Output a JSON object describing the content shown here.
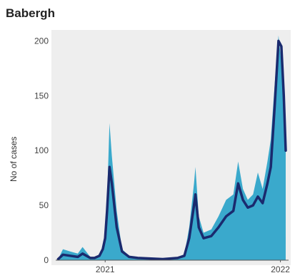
{
  "title": "Babergh",
  "chart_data": {
    "type": "area",
    "title": "Babergh",
    "xlabel": "",
    "ylabel": "No of cases",
    "ylim": [
      0,
      210
    ],
    "y_ticks": [
      0,
      50,
      100,
      150,
      200
    ],
    "x_ticks": [
      "2021",
      "2022"
    ],
    "grid": false,
    "series": [
      {
        "kind": "daily",
        "color": "#3aa9cc",
        "x": [
          "2020-09-25",
          "2020-10-05",
          "2020-10-20",
          "2020-11-05",
          "2020-11-15",
          "2020-12-01",
          "2020-12-10",
          "2020-12-20",
          "2020-12-27",
          "2021-01-01",
          "2021-01-05",
          "2021-01-10",
          "2021-01-15",
          "2021-01-25",
          "2021-02-05",
          "2021-02-20",
          "2021-03-10",
          "2021-05-01",
          "2021-06-01",
          "2021-06-15",
          "2021-06-25",
          "2021-07-05",
          "2021-07-08",
          "2021-07-15",
          "2021-07-25",
          "2021-08-10",
          "2021-08-25",
          "2021-09-10",
          "2021-09-25",
          "2021-10-05",
          "2021-10-15",
          "2021-10-25",
          "2021-11-05",
          "2021-11-15",
          "2021-11-25",
          "2021-12-05",
          "2021-12-12",
          "2021-12-20",
          "2021-12-28",
          "2022-01-03",
          "2022-01-08",
          "2022-01-12"
        ],
        "values": [
          1,
          10,
          8,
          6,
          12,
          3,
          2,
          4,
          12,
          26,
          55,
          125,
          95,
          45,
          10,
          4,
          2,
          1,
          2,
          5,
          30,
          70,
          85,
          40,
          25,
          28,
          40,
          55,
          60,
          90,
          65,
          55,
          60,
          80,
          65,
          90,
          110,
          160,
          205,
          180,
          140,
          110
        ]
      },
      {
        "kind": "rolling_average",
        "color": "#1a2a6e",
        "x": [
          "2020-09-25",
          "2020-10-05",
          "2020-10-20",
          "2020-11-05",
          "2020-11-15",
          "2020-12-01",
          "2020-12-10",
          "2020-12-20",
          "2020-12-27",
          "2021-01-01",
          "2021-01-05",
          "2021-01-10",
          "2021-01-15",
          "2021-01-25",
          "2021-02-05",
          "2021-02-20",
          "2021-03-10",
          "2021-05-01",
          "2021-06-01",
          "2021-06-15",
          "2021-06-25",
          "2021-07-05",
          "2021-07-08",
          "2021-07-15",
          "2021-07-25",
          "2021-08-10",
          "2021-08-25",
          "2021-09-10",
          "2021-09-25",
          "2021-10-05",
          "2021-10-15",
          "2021-10-25",
          "2021-11-05",
          "2021-11-15",
          "2021-11-25",
          "2021-12-05",
          "2021-12-12",
          "2021-12-20",
          "2021-12-28",
          "2022-01-03",
          "2022-01-08",
          "2022-01-12"
        ],
        "values": [
          1,
          5,
          4,
          3,
          6,
          2,
          2,
          4,
          10,
          20,
          45,
          85,
          70,
          30,
          8,
          3,
          2,
          1,
          2,
          4,
          20,
          50,
          60,
          30,
          20,
          22,
          30,
          40,
          45,
          70,
          55,
          48,
          50,
          58,
          52,
          70,
          85,
          140,
          200,
          195,
          150,
          100
        ]
      }
    ]
  }
}
